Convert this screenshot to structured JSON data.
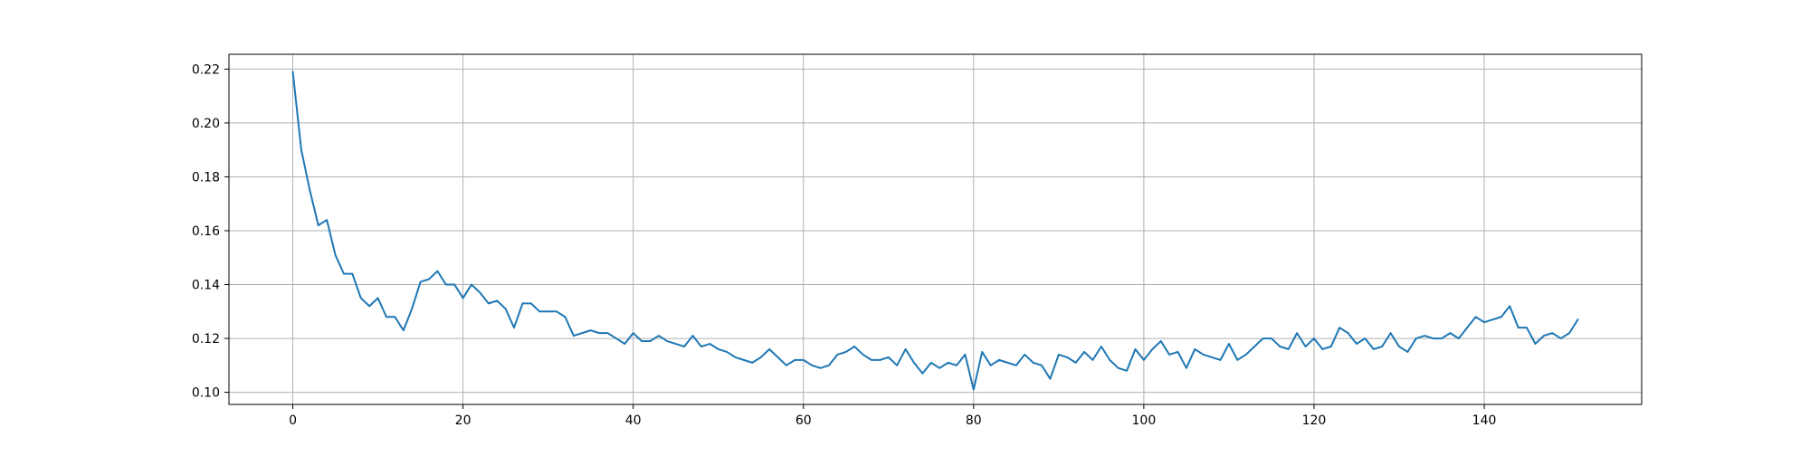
{
  "chart_data": {
    "type": "line",
    "title": "",
    "xlabel": "",
    "ylabel": "",
    "grid": true,
    "xlim": [
      -7.5,
      158.5
    ],
    "ylim": [
      0.0955,
      0.2255
    ],
    "xticks": [
      0,
      20,
      40,
      60,
      80,
      100,
      120,
      140
    ],
    "yticks": [
      0.1,
      0.12,
      0.14,
      0.16,
      0.18,
      0.2,
      0.22
    ],
    "xtick_labels": [
      "0",
      "20",
      "40",
      "60",
      "80",
      "100",
      "120",
      "140"
    ],
    "ytick_labels": [
      "0.10",
      "0.12",
      "0.14",
      "0.16",
      "0.18",
      "0.20",
      "0.22"
    ],
    "series": [
      {
        "color": "#1f77b4",
        "x_start": 0,
        "values": [
          0.219,
          0.19,
          0.175,
          0.162,
          0.164,
          0.151,
          0.144,
          0.144,
          0.135,
          0.132,
          0.135,
          0.128,
          0.128,
          0.123,
          0.131,
          0.141,
          0.142,
          0.145,
          0.14,
          0.14,
          0.135,
          0.14,
          0.137,
          0.133,
          0.134,
          0.131,
          0.124,
          0.133,
          0.133,
          0.13,
          0.13,
          0.13,
          0.128,
          0.121,
          0.122,
          0.123,
          0.122,
          0.122,
          0.12,
          0.118,
          0.122,
          0.119,
          0.119,
          0.121,
          0.119,
          0.118,
          0.117,
          0.121,
          0.117,
          0.118,
          0.116,
          0.115,
          0.113,
          0.112,
          0.111,
          0.113,
          0.116,
          0.113,
          0.11,
          0.112,
          0.112,
          0.11,
          0.109,
          0.11,
          0.114,
          0.115,
          0.117,
          0.114,
          0.112,
          0.112,
          0.113,
          0.11,
          0.116,
          0.111,
          0.107,
          0.111,
          0.109,
          0.111,
          0.11,
          0.114,
          0.101,
          0.115,
          0.11,
          0.112,
          0.111,
          0.11,
          0.114,
          0.111,
          0.11,
          0.105,
          0.114,
          0.113,
          0.111,
          0.115,
          0.112,
          0.117,
          0.112,
          0.109,
          0.108,
          0.116,
          0.112,
          0.116,
          0.119,
          0.114,
          0.115,
          0.109,
          0.116,
          0.114,
          0.113,
          0.112,
          0.118,
          0.112,
          0.114,
          0.117,
          0.12,
          0.12,
          0.117,
          0.116,
          0.122,
          0.117,
          0.12,
          0.116,
          0.117,
          0.124,
          0.122,
          0.118,
          0.12,
          0.116,
          0.117,
          0.122,
          0.117,
          0.115,
          0.12,
          0.121,
          0.12,
          0.12,
          0.122,
          0.12,
          0.124,
          0.128,
          0.126,
          0.127,
          0.128,
          0.132,
          0.124,
          0.124,
          0.118,
          0.121,
          0.122,
          0.12,
          0.122,
          0.127
        ]
      }
    ]
  }
}
